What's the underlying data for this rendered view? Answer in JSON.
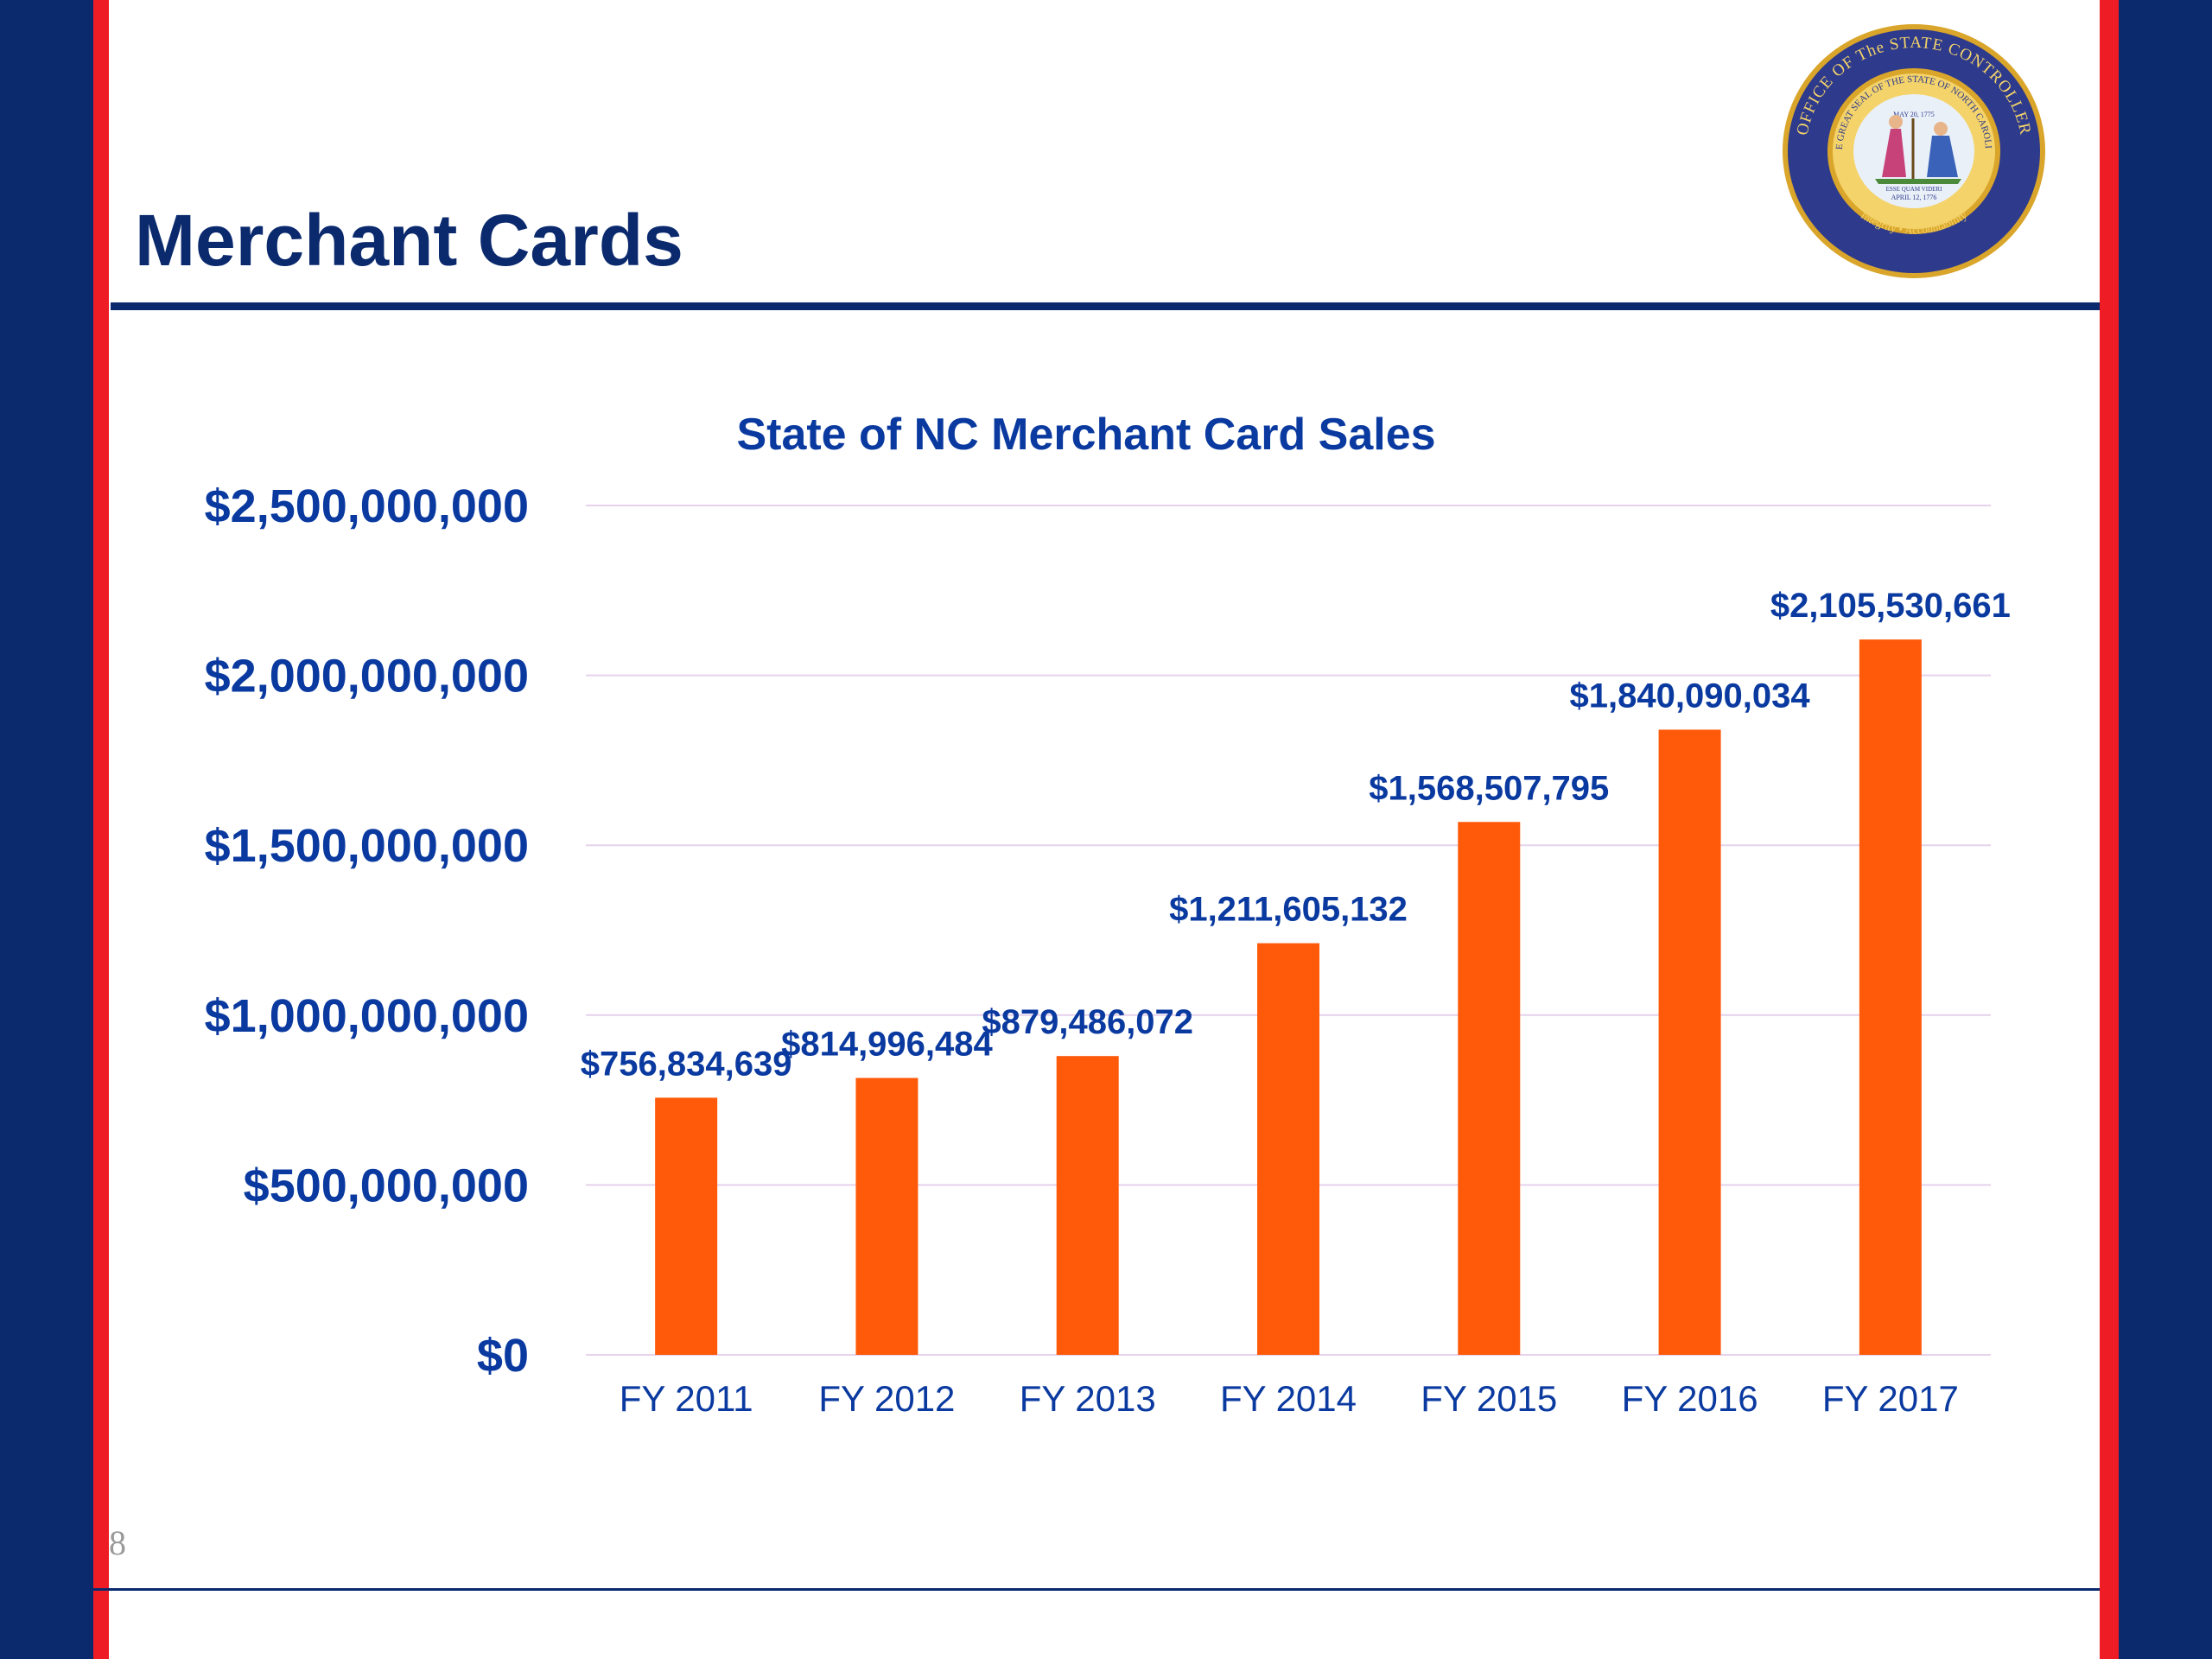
{
  "slide": {
    "title": "Merchant Cards",
    "page_number": "8"
  },
  "seal": {
    "outer_text": "OFFICE OF The STATE CONTROLLER",
    "inner_text": "THE GREAT SEAL OF THE STATE OF NORTH CAROLINA",
    "date_top": "MAY 20, 1775",
    "date_bottom": "APRIL 12, 1776",
    "motto": "ESSE QUAM VIDERI",
    "tagline": "Integrity • Accountability"
  },
  "colors": {
    "navy": "#0b2a6e",
    "chart_blue": "#0a3aa0",
    "bar_orange": "#ff5a0a",
    "red": "#ee1c25",
    "gridline": "#e6d2ec",
    "seal_gold": "#d9a52a",
    "seal_navy": "#2e3a8c"
  },
  "chart_data": {
    "type": "bar",
    "title": "State of NC Merchant Card Sales",
    "xlabel": "",
    "ylabel": "",
    "categories": [
      "FY 2011",
      "FY 2012",
      "FY 2013",
      "FY 2014",
      "FY 2015",
      "FY 2016",
      "FY 2017"
    ],
    "values": [
      756834639,
      814996484,
      879486072,
      1211605132,
      1568507795,
      1840090034,
      2105530661
    ],
    "data_labels": [
      "$756,834,639",
      "$814,996,484",
      "$879,486,072",
      "$1,211,605,132",
      "$1,568,507,795",
      "$1,840,090,034",
      "$2,105,530,661"
    ],
    "ylim": [
      0,
      2500000000
    ],
    "yticks": [
      0,
      500000000,
      1000000000,
      1500000000,
      2000000000,
      2500000000
    ],
    "ytick_labels": [
      "$0",
      "$500,000,000",
      "$1,000,000,000",
      "$1,500,000,000",
      "$2,000,000,000",
      "$2,500,000,000"
    ],
    "grid": true,
    "legend": "none"
  }
}
